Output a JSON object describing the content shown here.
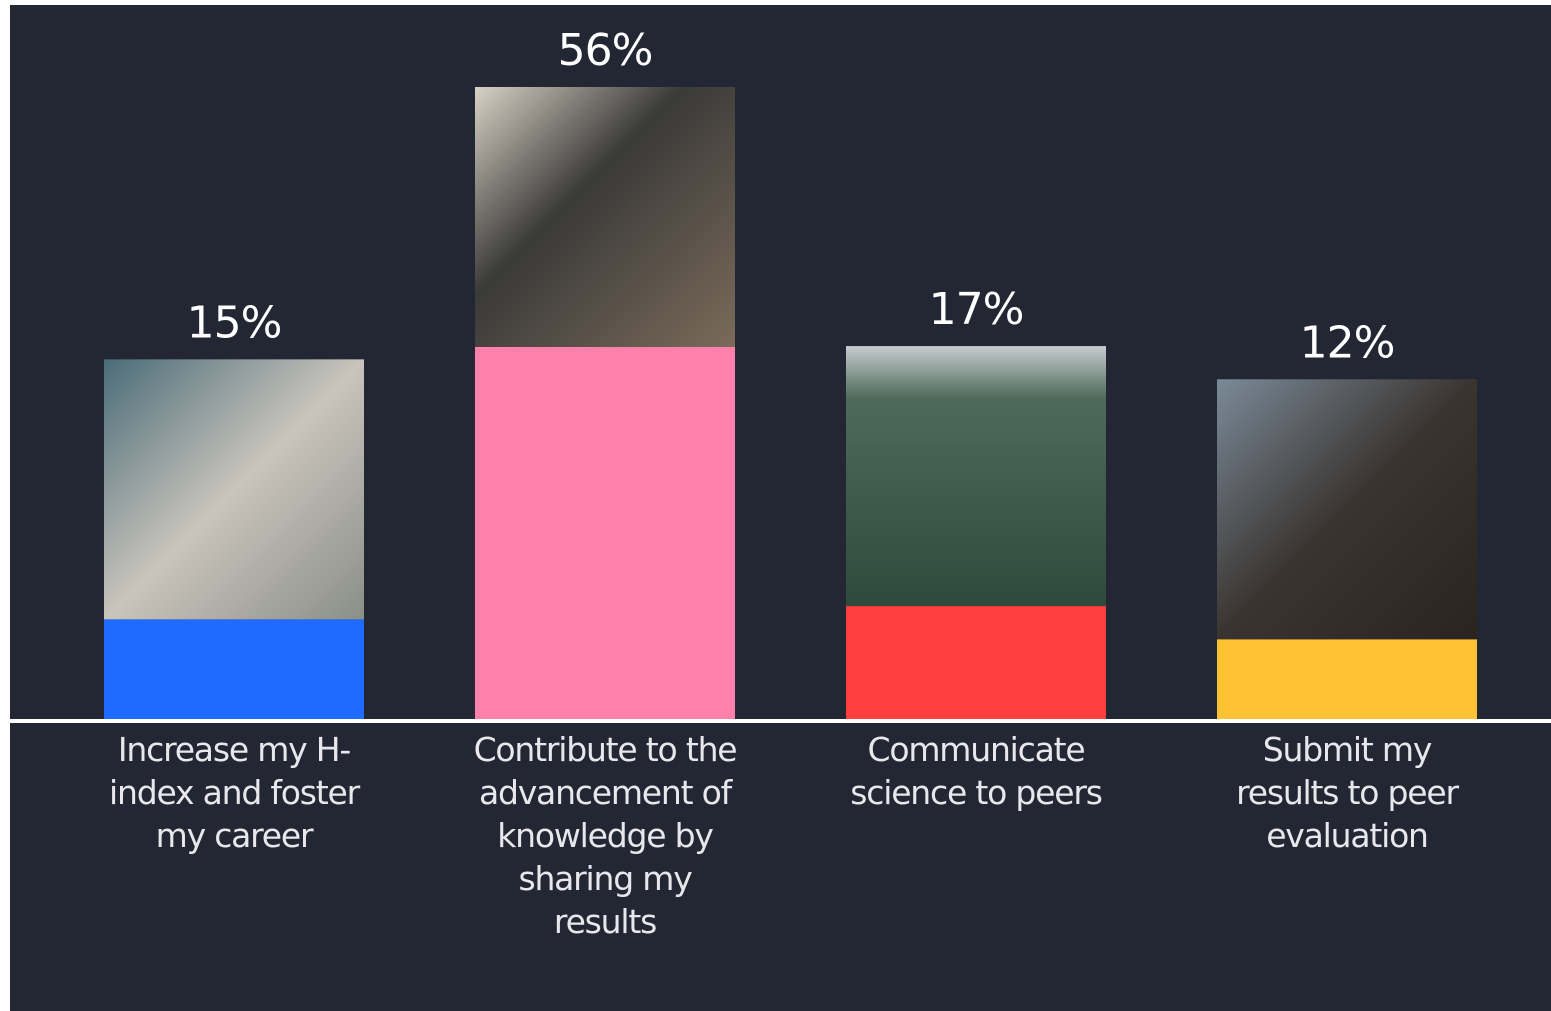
{
  "chart_data": {
    "type": "bar",
    "categories": [
      "Increase my H-index and foster my career",
      "Contribute to the advancement of knowledge by sharing my results",
      "Communicate science to peers",
      "Submit my results to peer evaluation"
    ],
    "values": [
      15,
      56,
      17,
      12
    ],
    "value_labels": [
      "15%",
      "56%",
      "17%",
      "12%"
    ],
    "colors": [
      "#1f6bff",
      "#ff80aa",
      "#ff3e3e",
      "#ffc233"
    ]
  }
}
